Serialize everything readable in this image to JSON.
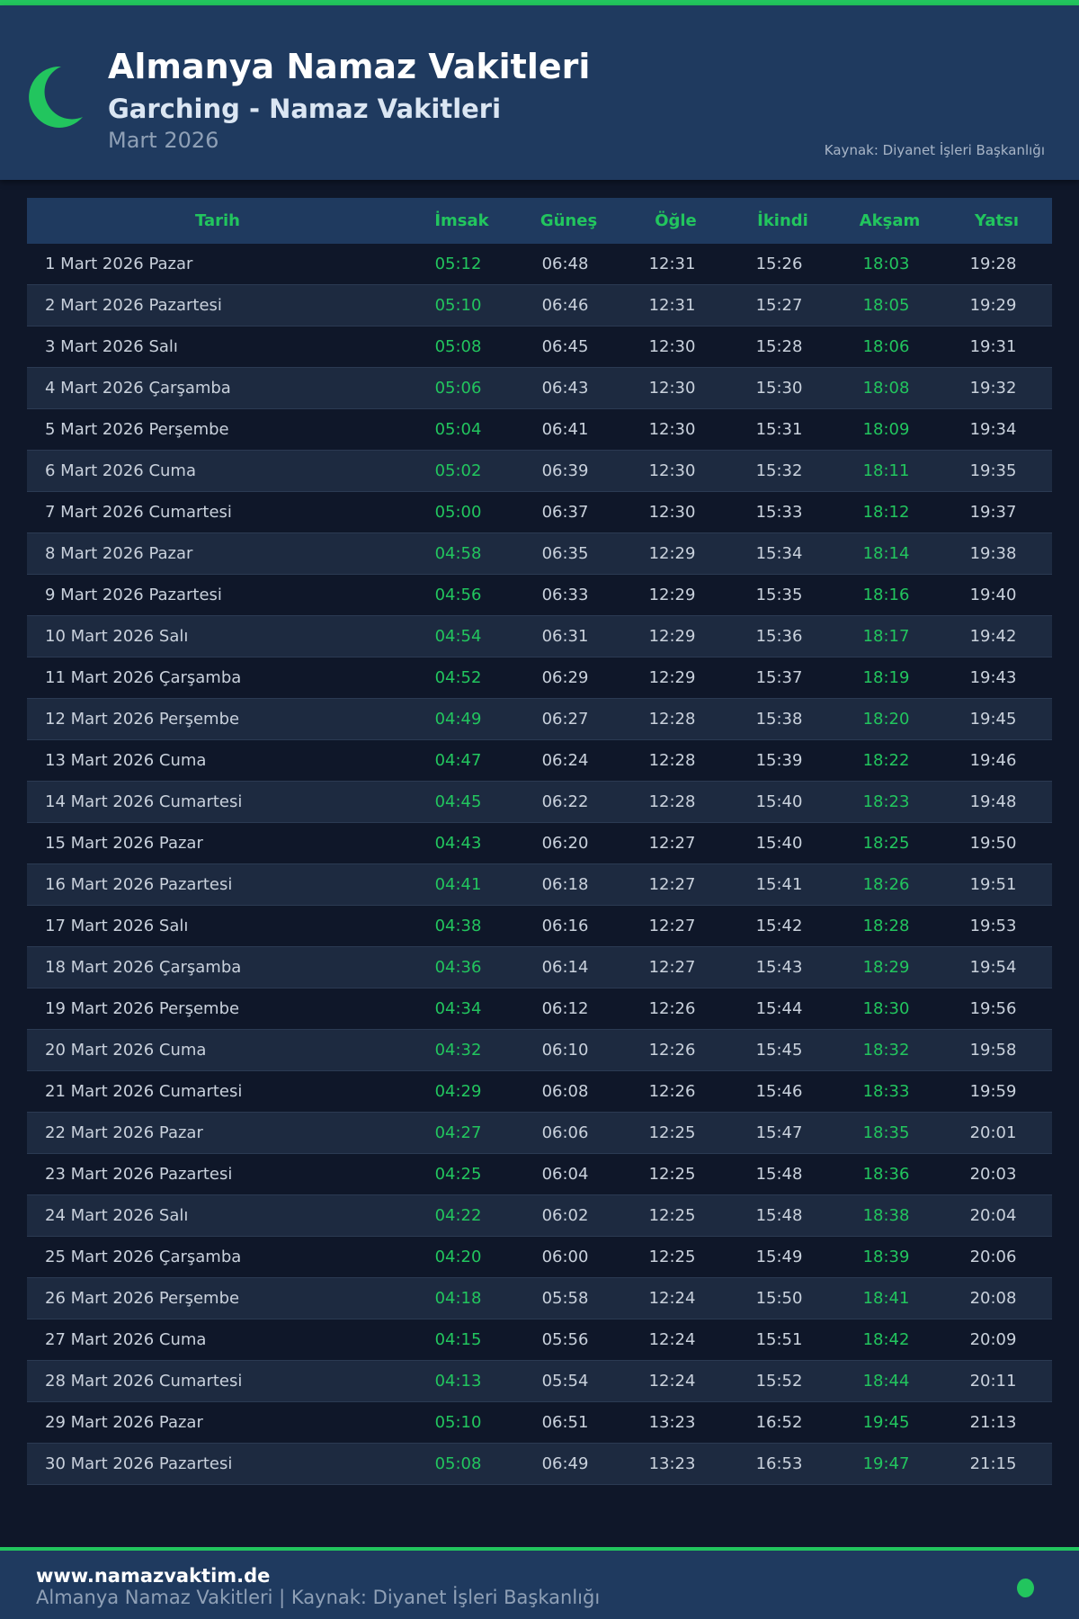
{
  "colors": {
    "accent": "#22c55e",
    "header_bg": "#1f3a5f",
    "page_bg": "#0f1729"
  },
  "header": {
    "icon": "crescent-moon-icon",
    "title": "Almanya Namaz Vakitleri",
    "subtitle": "Garching - Namaz Vakitleri",
    "month": "Mart 2026",
    "source": "Kaynak: Diyanet İşleri Başkanlığı"
  },
  "table": {
    "columns": [
      "Tarih",
      "İmsak",
      "Güneş",
      "Öğle",
      "İkindi",
      "Akşam",
      "Yatsı"
    ],
    "rows": [
      [
        "1 Mart 2026 Pazar",
        "05:12",
        "06:48",
        "12:31",
        "15:26",
        "18:03",
        "19:28"
      ],
      [
        "2 Mart 2026 Pazartesi",
        "05:10",
        "06:46",
        "12:31",
        "15:27",
        "18:05",
        "19:29"
      ],
      [
        "3 Mart 2026 Salı",
        "05:08",
        "06:45",
        "12:30",
        "15:28",
        "18:06",
        "19:31"
      ],
      [
        "4 Mart 2026 Çarşamba",
        "05:06",
        "06:43",
        "12:30",
        "15:30",
        "18:08",
        "19:32"
      ],
      [
        "5 Mart 2026 Perşembe",
        "05:04",
        "06:41",
        "12:30",
        "15:31",
        "18:09",
        "19:34"
      ],
      [
        "6 Mart 2026 Cuma",
        "05:02",
        "06:39",
        "12:30",
        "15:32",
        "18:11",
        "19:35"
      ],
      [
        "7 Mart 2026 Cumartesi",
        "05:00",
        "06:37",
        "12:30",
        "15:33",
        "18:12",
        "19:37"
      ],
      [
        "8 Mart 2026 Pazar",
        "04:58",
        "06:35",
        "12:29",
        "15:34",
        "18:14",
        "19:38"
      ],
      [
        "9 Mart 2026 Pazartesi",
        "04:56",
        "06:33",
        "12:29",
        "15:35",
        "18:16",
        "19:40"
      ],
      [
        "10 Mart 2026 Salı",
        "04:54",
        "06:31",
        "12:29",
        "15:36",
        "18:17",
        "19:42"
      ],
      [
        "11 Mart 2026 Çarşamba",
        "04:52",
        "06:29",
        "12:29",
        "15:37",
        "18:19",
        "19:43"
      ],
      [
        "12 Mart 2026 Perşembe",
        "04:49",
        "06:27",
        "12:28",
        "15:38",
        "18:20",
        "19:45"
      ],
      [
        "13 Mart 2026 Cuma",
        "04:47",
        "06:24",
        "12:28",
        "15:39",
        "18:22",
        "19:46"
      ],
      [
        "14 Mart 2026 Cumartesi",
        "04:45",
        "06:22",
        "12:28",
        "15:40",
        "18:23",
        "19:48"
      ],
      [
        "15 Mart 2026 Pazar",
        "04:43",
        "06:20",
        "12:27",
        "15:40",
        "18:25",
        "19:50"
      ],
      [
        "16 Mart 2026 Pazartesi",
        "04:41",
        "06:18",
        "12:27",
        "15:41",
        "18:26",
        "19:51"
      ],
      [
        "17 Mart 2026 Salı",
        "04:38",
        "06:16",
        "12:27",
        "15:42",
        "18:28",
        "19:53"
      ],
      [
        "18 Mart 2026 Çarşamba",
        "04:36",
        "06:14",
        "12:27",
        "15:43",
        "18:29",
        "19:54"
      ],
      [
        "19 Mart 2026 Perşembe",
        "04:34",
        "06:12",
        "12:26",
        "15:44",
        "18:30",
        "19:56"
      ],
      [
        "20 Mart 2026 Cuma",
        "04:32",
        "06:10",
        "12:26",
        "15:45",
        "18:32",
        "19:58"
      ],
      [
        "21 Mart 2026 Cumartesi",
        "04:29",
        "06:08",
        "12:26",
        "15:46",
        "18:33",
        "19:59"
      ],
      [
        "22 Mart 2026 Pazar",
        "04:27",
        "06:06",
        "12:25",
        "15:47",
        "18:35",
        "20:01"
      ],
      [
        "23 Mart 2026 Pazartesi",
        "04:25",
        "06:04",
        "12:25",
        "15:48",
        "18:36",
        "20:03"
      ],
      [
        "24 Mart 2026 Salı",
        "04:22",
        "06:02",
        "12:25",
        "15:48",
        "18:38",
        "20:04"
      ],
      [
        "25 Mart 2026 Çarşamba",
        "04:20",
        "06:00",
        "12:25",
        "15:49",
        "18:39",
        "20:06"
      ],
      [
        "26 Mart 2026 Perşembe",
        "04:18",
        "05:58",
        "12:24",
        "15:50",
        "18:41",
        "20:08"
      ],
      [
        "27 Mart 2026 Cuma",
        "04:15",
        "05:56",
        "12:24",
        "15:51",
        "18:42",
        "20:09"
      ],
      [
        "28 Mart 2026 Cumartesi",
        "04:13",
        "05:54",
        "12:24",
        "15:52",
        "18:44",
        "20:11"
      ],
      [
        "29 Mart 2026 Pazar",
        "05:10",
        "06:51",
        "13:23",
        "16:52",
        "19:45",
        "21:13"
      ],
      [
        "30 Mart 2026 Pazartesi",
        "05:08",
        "06:49",
        "13:23",
        "16:53",
        "19:47",
        "21:15"
      ]
    ]
  },
  "footer": {
    "site": "www.namazvaktim.de",
    "text": "Almanya Namaz Vakitleri | Kaynak: Diyanet İşleri Başkanlığı"
  }
}
